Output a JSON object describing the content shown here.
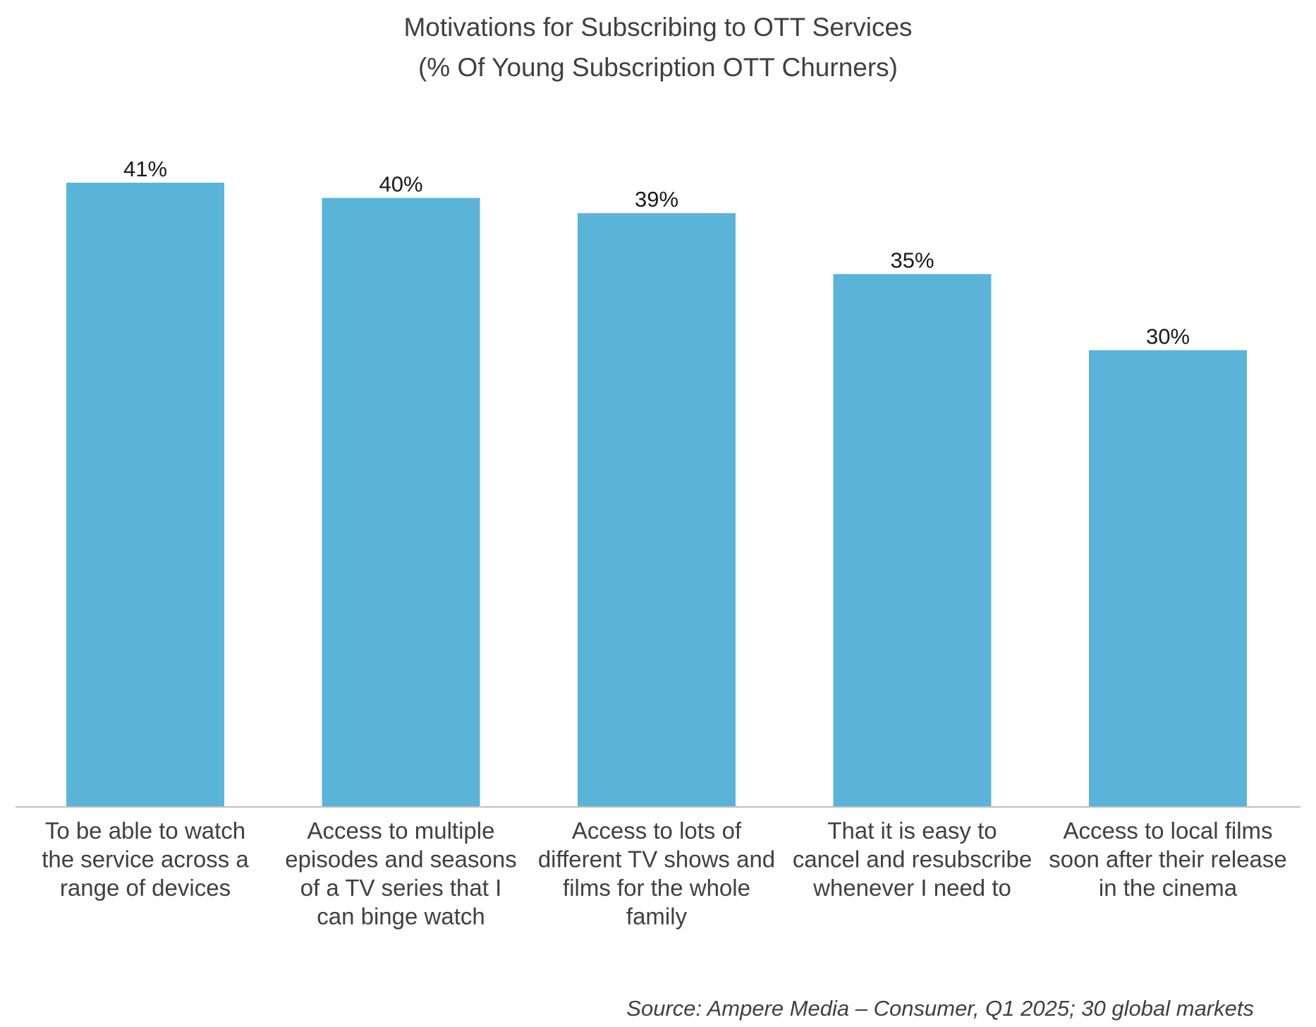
{
  "chart_data": {
    "type": "bar",
    "title": "Motivations for Subscribing to OTT Services",
    "subtitle": "(% Of Young Subscription OTT Churners)",
    "xlabel": "",
    "ylabel": "",
    "categories": [
      [
        "To be able to watch",
        "the service across a",
        "range of devices"
      ],
      [
        "Access to multiple",
        "episodes and seasons",
        "of a TV series that I",
        "can binge watch"
      ],
      [
        "Access to lots of",
        "different TV shows and",
        "films for the whole",
        "family"
      ],
      [
        "That it is easy to",
        "cancel and resubscribe",
        "whenever I need to"
      ],
      [
        "Access to local films",
        "soon after their release",
        "in the cinema"
      ]
    ],
    "values": [
      41,
      40,
      39,
      35,
      30
    ],
    "value_labels": [
      "41%",
      "40%",
      "39%",
      "35%",
      "30%"
    ],
    "ylim": [
      0,
      41
    ],
    "grid": false,
    "legend": "none",
    "bar_color": "#5AB4D8",
    "axis_color": "#BFBFBF"
  },
  "source": "Source: Ampere Media – Consumer, Q1 2025; 30 global markets"
}
